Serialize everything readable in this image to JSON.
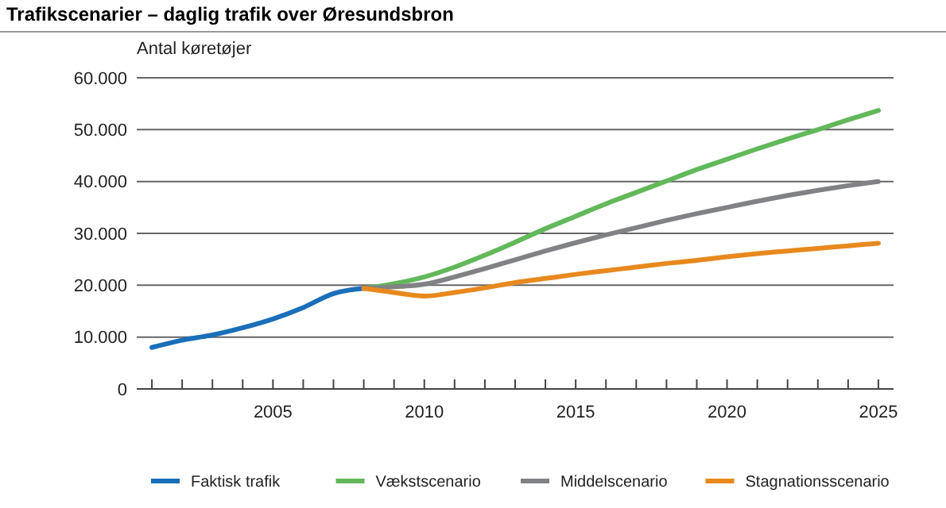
{
  "chart_data": {
    "type": "line",
    "title": "Trafikscenarier – daglig trafik over Øresundsbron",
    "ylabel": "Antal køretøjer",
    "xlim": [
      2000.5,
      2025.5
    ],
    "xticks": [
      {
        "value": 2001,
        "label": null
      },
      {
        "value": 2002,
        "label": null
      },
      {
        "value": 2003,
        "label": null
      },
      {
        "value": 2004,
        "label": null
      },
      2005,
      {
        "value": 2006,
        "label": null
      },
      {
        "value": 2007,
        "label": null
      },
      {
        "value": 2008,
        "label": null
      },
      {
        "value": 2009,
        "label": null
      },
      2010,
      {
        "value": 2011,
        "label": null
      },
      {
        "value": 2012,
        "label": null
      },
      {
        "value": 2013,
        "label": null
      },
      {
        "value": 2014,
        "label": null
      },
      2015,
      {
        "value": 2016,
        "label": null
      },
      {
        "value": 2017,
        "label": null
      },
      {
        "value": 2018,
        "label": null
      },
      {
        "value": 2019,
        "label": null
      },
      2020,
      {
        "value": 2021,
        "label": null
      },
      {
        "value": 2022,
        "label": null
      },
      {
        "value": 2023,
        "label": null
      },
      {
        "value": 2024,
        "label": null
      },
      2025
    ],
    "ylim": [
      0,
      60000
    ],
    "yticks": [
      0,
      {
        "value": 10000,
        "label": "10.000"
      },
      {
        "value": 20000,
        "label": "20.000"
      },
      {
        "value": 30000,
        "label": "30.000"
      },
      {
        "value": 40000,
        "label": "40.000"
      },
      {
        "value": 50000,
        "label": "50.000"
      },
      {
        "value": 60000,
        "label": "60.000"
      }
    ],
    "grid": "y",
    "legend": "bottom",
    "marker": "none",
    "line_style": "solid",
    "series": [
      {
        "name": "Faktisk trafik",
        "color": "#1a6fb8",
        "x": [
          2001,
          2002,
          2003,
          2004,
          2005,
          2006,
          2007,
          2008
        ],
        "values": [
          8000,
          9400,
          10400,
          11800,
          13500,
          15700,
          18400,
          19400
        ]
      },
      {
        "name": "Vækstscenario",
        "color": "#62b85a",
        "x": [
          2008,
          2009,
          2010,
          2011,
          2012,
          2013,
          2014,
          2015,
          2016,
          2017,
          2018,
          2019,
          2020,
          2021,
          2022,
          2023,
          2024,
          2025
        ],
        "values": [
          19400,
          20300,
          21600,
          23500,
          25800,
          28300,
          30900,
          33300,
          35700,
          37900,
          40100,
          42300,
          44300,
          46300,
          48200,
          50000,
          51900,
          53700
        ]
      },
      {
        "name": "Middelscenario",
        "color": "#808285",
        "x": [
          2008,
          2009,
          2010,
          2011,
          2012,
          2013,
          2014,
          2015,
          2016,
          2017,
          2018,
          2019,
          2020,
          2021,
          2022,
          2023,
          2024,
          2025
        ],
        "values": [
          19400,
          19700,
          20200,
          21600,
          23200,
          24900,
          26600,
          28200,
          29700,
          31100,
          32500,
          33800,
          35000,
          36200,
          37300,
          38300,
          39200,
          40000
        ]
      },
      {
        "name": "Stagnationsscenario",
        "color": "#e8891e",
        "x": [
          2008,
          2009,
          2010,
          2011,
          2012,
          2013,
          2014,
          2015,
          2016,
          2017,
          2018,
          2019,
          2020,
          2021,
          2022,
          2023,
          2024,
          2025
        ],
        "values": [
          19400,
          18600,
          17900,
          18600,
          19500,
          20500,
          21300,
          22100,
          22800,
          23500,
          24200,
          24800,
          25500,
          26100,
          26600,
          27100,
          27600,
          28100
        ]
      }
    ]
  }
}
